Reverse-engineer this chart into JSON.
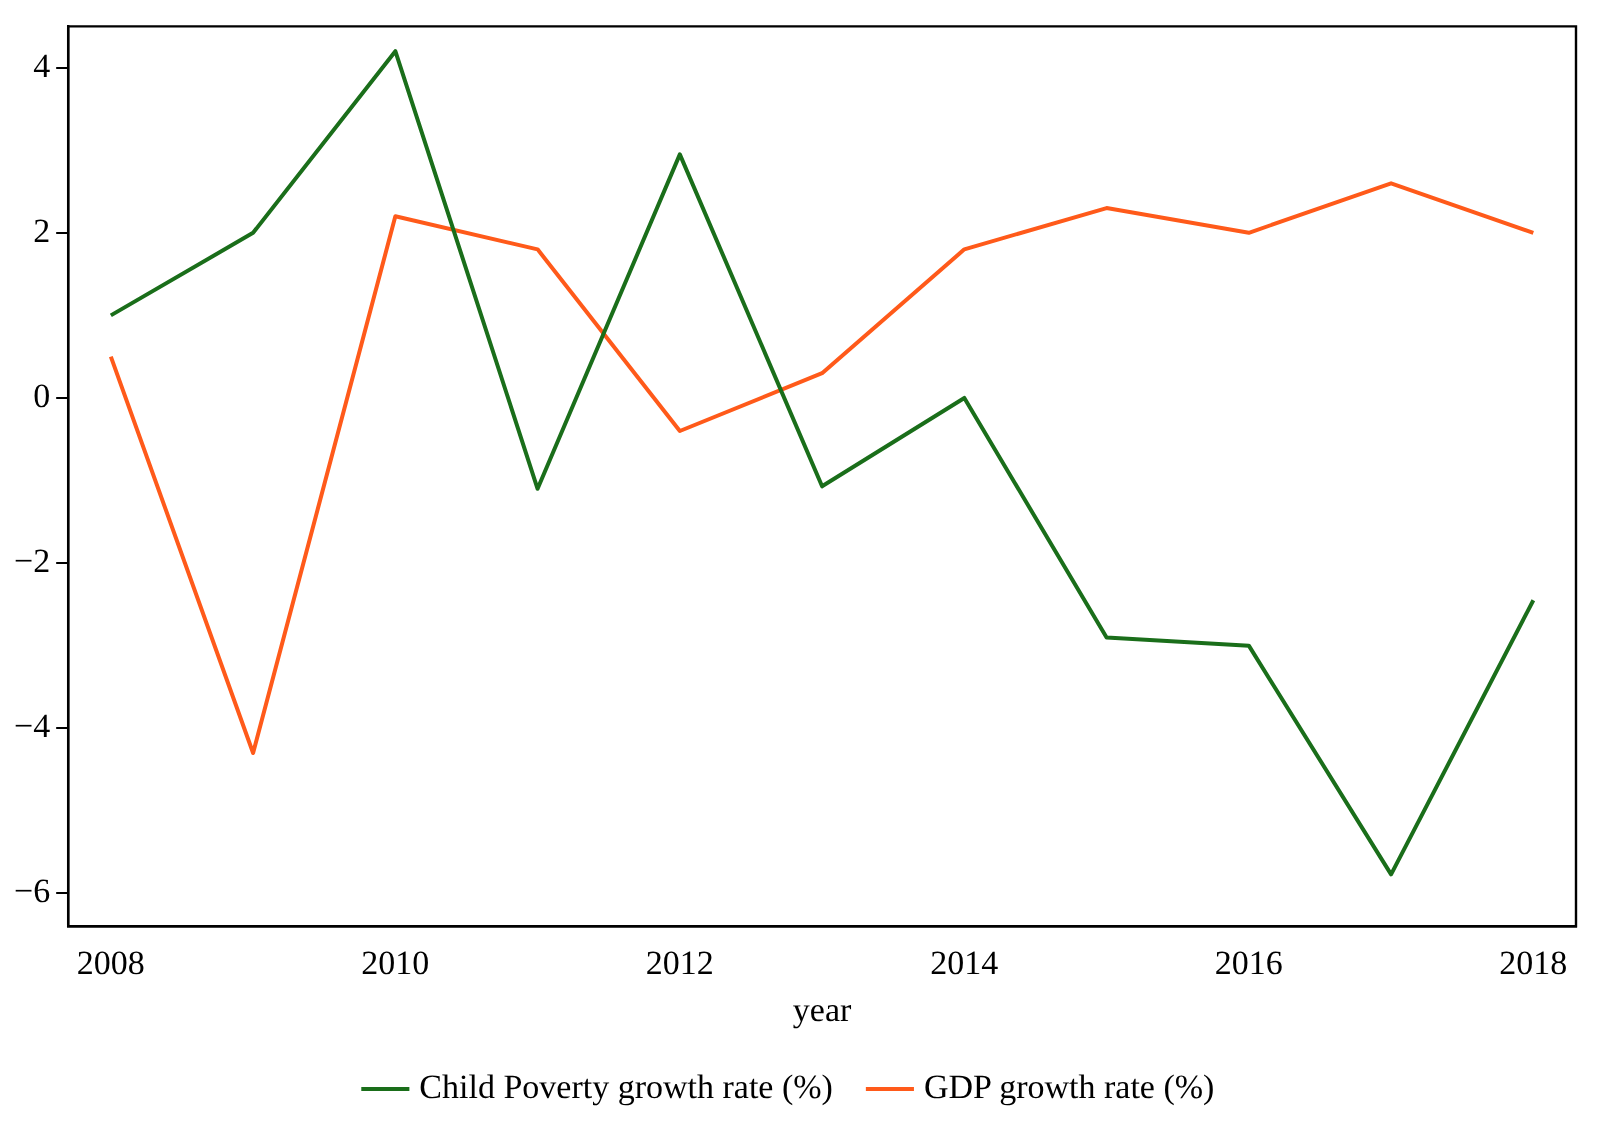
{
  "chart_data": {
    "type": "line",
    "xlabel": "year",
    "x": [
      2008,
      2009,
      2010,
      2011,
      2012,
      2013,
      2014,
      2015,
      2016,
      2017,
      2018
    ],
    "series": [
      {
        "name": "Child Poverty growth rate (%)",
        "color": "#1a6e1a",
        "values": [
          1.0,
          2.0,
          4.2,
          -1.1,
          2.95,
          -1.07,
          0,
          -2.9,
          -3.0,
          -5.77,
          -2.45
        ]
      },
      {
        "name": "GDP growth rate (%)",
        "color": "#ff5a1a",
        "values": [
          0.5,
          -4.3,
          2.2,
          1.8,
          -0.4,
          0.3,
          1.8,
          2.3,
          2.0,
          2.6,
          2.0
        ]
      }
    ],
    "xlim": [
      2007.7,
      2018.3
    ],
    "xticks": [
      2008,
      2010,
      2012,
      2014,
      2016,
      2018
    ],
    "ylim": [
      -6.4,
      4.5
    ],
    "yticks": [
      {
        "value": -6,
        "label": "−6"
      },
      {
        "value": -4,
        "label": "−4"
      },
      {
        "value": -2,
        "label": "−2"
      },
      0,
      2,
      4
    ],
    "grid": false,
    "legend": "bottom",
    "marker": "none",
    "line_style": "solid"
  }
}
